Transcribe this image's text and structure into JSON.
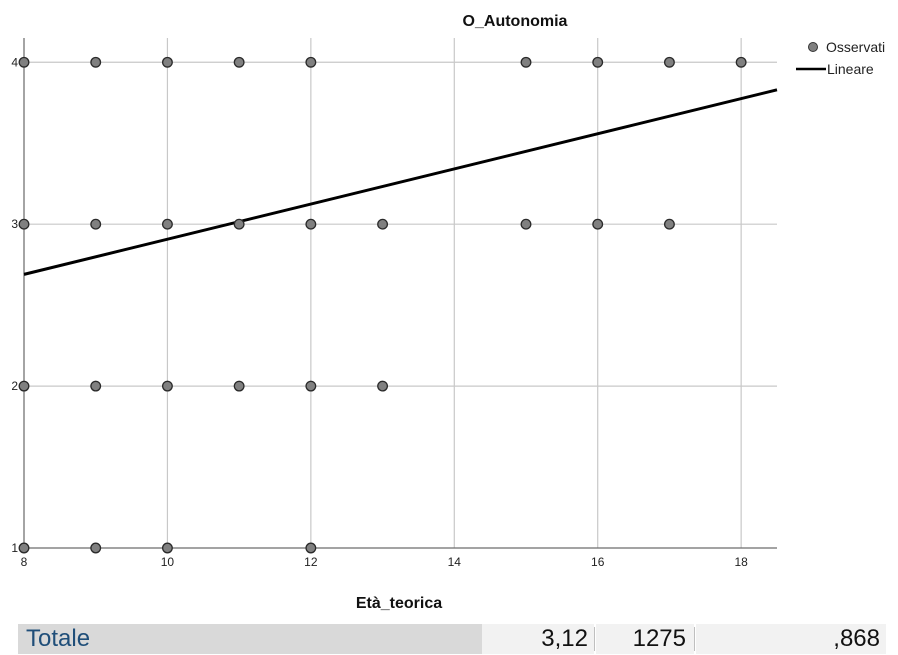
{
  "chart_data": {
    "type": "scatter",
    "title": "O_Autonomia",
    "xlabel": "Età_teorica",
    "ylabel": "",
    "xlim": [
      8,
      18.5
    ],
    "ylim": [
      1,
      4.15
    ],
    "xticks": [
      8,
      10,
      12,
      14,
      16,
      18
    ],
    "yticks": [
      1,
      2,
      3,
      4
    ],
    "grid": true,
    "legend_position": "top-right",
    "series": [
      {
        "name": "Osservati",
        "kind": "points",
        "color": "#808080",
        "points": [
          [
            8,
            4
          ],
          [
            9,
            4
          ],
          [
            10,
            4
          ],
          [
            11,
            4
          ],
          [
            12,
            4
          ],
          [
            15,
            4
          ],
          [
            16,
            4
          ],
          [
            17,
            4
          ],
          [
            18,
            4
          ],
          [
            8,
            3
          ],
          [
            9,
            3
          ],
          [
            10,
            3
          ],
          [
            11,
            3
          ],
          [
            12,
            3
          ],
          [
            13,
            3
          ],
          [
            15,
            3
          ],
          [
            16,
            3
          ],
          [
            17,
            3
          ],
          [
            8,
            2
          ],
          [
            9,
            2
          ],
          [
            10,
            2
          ],
          [
            11,
            2
          ],
          [
            12,
            2
          ],
          [
            13,
            2
          ],
          [
            8,
            1
          ],
          [
            9,
            1
          ],
          [
            10,
            1
          ],
          [
            12,
            1
          ]
        ]
      },
      {
        "name": "Lineare",
        "kind": "line",
        "color": "#000000",
        "points": [
          [
            8,
            2.69
          ],
          [
            18.5,
            3.83
          ]
        ]
      }
    ]
  },
  "table": {
    "label": "Totale",
    "values": [
      "3,12",
      "1275",
      ",868"
    ]
  }
}
